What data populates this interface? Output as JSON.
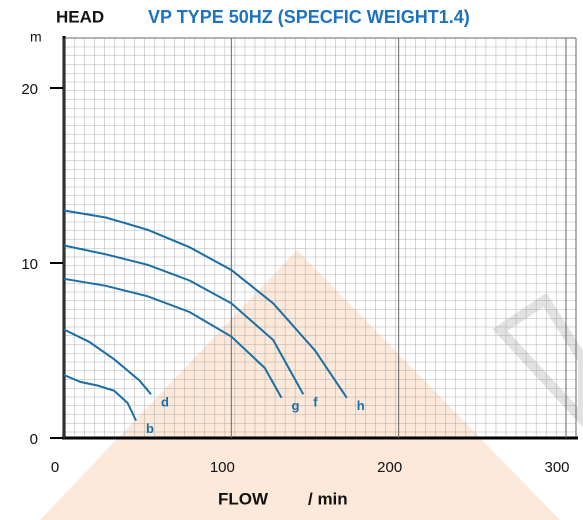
{
  "chart_data": {
    "type": "line",
    "title": "VP TYPE 50HZ (SPECFIC WEIGHT1.4)",
    "y_label": "HEAD",
    "y_unit": "m",
    "x_label": "FLOW",
    "x_unit": "/ min",
    "xlim": [
      0,
      300
    ],
    "xticks": [
      0,
      100,
      200,
      300
    ],
    "ylim": [
      0,
      23
    ],
    "yticks": [
      0,
      10,
      20
    ],
    "grid": true,
    "series": [
      {
        "name": "b",
        "color": "#1a6ea6",
        "x": [
          0,
          10,
          20,
          30,
          38,
          43
        ],
        "values": [
          3.6,
          3.2,
          3.0,
          2.7,
          2.0,
          1.0
        ]
      },
      {
        "name": "d",
        "color": "#1a6ea6",
        "x": [
          0,
          15,
          30,
          45,
          52
        ],
        "values": [
          6.2,
          5.5,
          4.5,
          3.3,
          2.5
        ]
      },
      {
        "name": "g",
        "color": "#1a6ea6",
        "x": [
          0,
          25,
          50,
          75,
          100,
          120,
          130
        ],
        "values": [
          9.1,
          8.7,
          8.1,
          7.2,
          5.8,
          4.0,
          2.3
        ]
      },
      {
        "name": "f",
        "color": "#1a6ea6",
        "x": [
          0,
          25,
          50,
          75,
          100,
          125,
          143
        ],
        "values": [
          11.0,
          10.5,
          9.9,
          9.0,
          7.7,
          5.6,
          2.5
        ]
      },
      {
        "name": "h",
        "color": "#1a6ea6",
        "x": [
          0,
          25,
          50,
          75,
          100,
          125,
          150,
          169
        ],
        "values": [
          13.0,
          12.6,
          11.9,
          10.9,
          9.6,
          7.7,
          5.0,
          2.3
        ]
      }
    ]
  }
}
